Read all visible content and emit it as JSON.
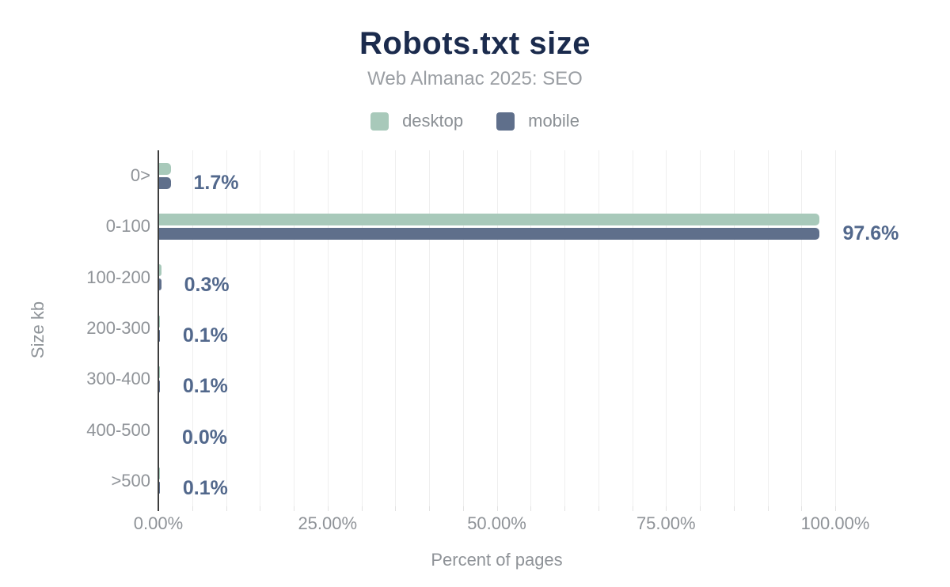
{
  "chart_data": {
    "type": "bar",
    "orientation": "horizontal",
    "title": "Robots.txt size",
    "subtitle": "Web Almanac 2025: SEO",
    "xlabel": "Percent of pages",
    "ylabel": "Size kb",
    "categories": [
      "0>",
      "0-100",
      "100-200",
      "200-300",
      "300-400",
      "400-500",
      ">500"
    ],
    "series": [
      {
        "name": "desktop",
        "color": "#a8c9ba",
        "values": [
          1.8,
          97.6,
          0.3,
          0.1,
          0.1,
          0.0,
          0.1
        ]
      },
      {
        "name": "mobile",
        "color": "#5f6f8b",
        "values": [
          1.7,
          97.6,
          0.3,
          0.1,
          0.1,
          0.0,
          0.1
        ]
      }
    ],
    "value_labels": [
      "1.7%",
      "97.6%",
      "0.3%",
      "0.1%",
      "0.1%",
      "0.0%",
      "0.1%"
    ],
    "x_ticks": [
      {
        "value": 0,
        "label": "0.00%"
      },
      {
        "value": 25,
        "label": "25.00%"
      },
      {
        "value": 50,
        "label": "50.00%"
      },
      {
        "value": 75,
        "label": "75.00%"
      },
      {
        "value": 100,
        "label": "100.00%"
      }
    ],
    "xlim": [
      0,
      100
    ],
    "minor_grid_step": 5,
    "grid": true,
    "legend_position": "top"
  },
  "colors": {
    "title": "#1b2b4d",
    "subtitle": "#9a9ea3",
    "axis_text": "#8f9398",
    "value_label": "#52688c",
    "gridline": "#efefef",
    "axis_line": "#3d3d3d",
    "background": "#ffffff",
    "desktop": "#a8c9ba",
    "mobile": "#5f6f8b"
  }
}
